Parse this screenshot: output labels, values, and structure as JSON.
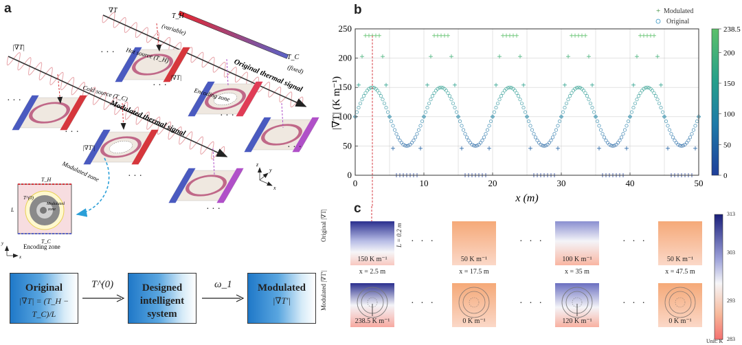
{
  "panels": {
    "a": "a",
    "b": "b",
    "c": "c"
  },
  "panel_a": {
    "grad_label": "∇T",
    "mod_grad_label": "|∇T|",
    "th_label": "T_H",
    "th_sub": "(variable)",
    "tc_label": "T_C",
    "tc_sub": "(fixed)",
    "hot_source": "Hot source (T_H)",
    "cold_source": "Cold source (T_C)",
    "encoding_zone": "Encoding zone",
    "grad_local": "|∇T|",
    "original_signal": "Original thermal signal",
    "modulated_signal": "Modulated thermal signal",
    "modulated_zone": "Modulated zone",
    "grad_local2": "|∇T'|",
    "axis_x": "x",
    "axis_y": "y",
    "axis_z": "z",
    "inset_th": "T_H",
    "inset_tc": "T_C",
    "inset_l": "L",
    "inset_t0": "T^(0)",
    "inset_modulated": "Modulated",
    "inset_zone": "zone",
    "inset_encoding": "Encoding zone",
    "inset_y": "y",
    "inset_x": "x",
    "ellipsis": "· · ·"
  },
  "flow": {
    "box1_title": "Original",
    "box1_eq": "|∇T| = (T_H − T_C)/L",
    "arrow1": "T^(0)",
    "box2_l1": "Designed",
    "box2_l2": "intelligent system",
    "arrow2": "ω_1",
    "box3_title": "Modulated",
    "box3_eq": "|∇T'|"
  },
  "chart_data": {
    "type": "scatter",
    "xlabel": "x (m)",
    "ylabel": "|∇T| (K m⁻¹)",
    "xlim": [
      0,
      50
    ],
    "ylim": [
      0,
      250
    ],
    "xticks": [
      0,
      10,
      20,
      30,
      40,
      50
    ],
    "yticks": [
      0,
      50,
      100,
      150,
      200,
      250
    ],
    "grid": true,
    "legend_position": "top-right",
    "colorbar": {
      "min": 0,
      "max": 238.5,
      "ticks": [
        "0",
        "50",
        "100",
        "150",
        "200",
        "238.5"
      ]
    },
    "series": [
      {
        "name": "Modulated",
        "marker": "+",
        "formula": "periodic, period 10 m, saturates at 238.5 and 0",
        "amplitude": 175,
        "offset": 100,
        "period": 10,
        "phase": 2.5,
        "max": 238.5,
        "min": 0
      },
      {
        "name": "Original",
        "marker": "o",
        "amplitude": 50,
        "offset": 100,
        "period": 10,
        "phase": 2.5
      }
    ]
  },
  "panel_c": {
    "colorbar": {
      "ticks": [
        "313",
        "303",
        "293",
        "283"
      ],
      "unit": "Unit: K"
    },
    "row1_label": "Original |∇T|",
    "row2_label": "Modulated |∇T'|",
    "size_label": "L = 0.2 m",
    "original_tiles": [
      {
        "value": "150 K m⁻¹",
        "x": "x = 2.5 m"
      },
      {
        "value": "50 K m⁻¹",
        "x": "x = 17.5 m"
      },
      {
        "value": "100 K m⁻¹",
        "x": "x = 35 m"
      },
      {
        "value": "50 K m⁻¹",
        "x": "x = 47.5 m"
      }
    ],
    "modulated_tiles": [
      {
        "value": "238.5 K m⁻¹"
      },
      {
        "value": "0 K m⁻¹"
      },
      {
        "value": "120 K m⁻¹"
      },
      {
        "value": "0 K m⁻¹"
      }
    ],
    "ellipsis": "· · ·"
  }
}
